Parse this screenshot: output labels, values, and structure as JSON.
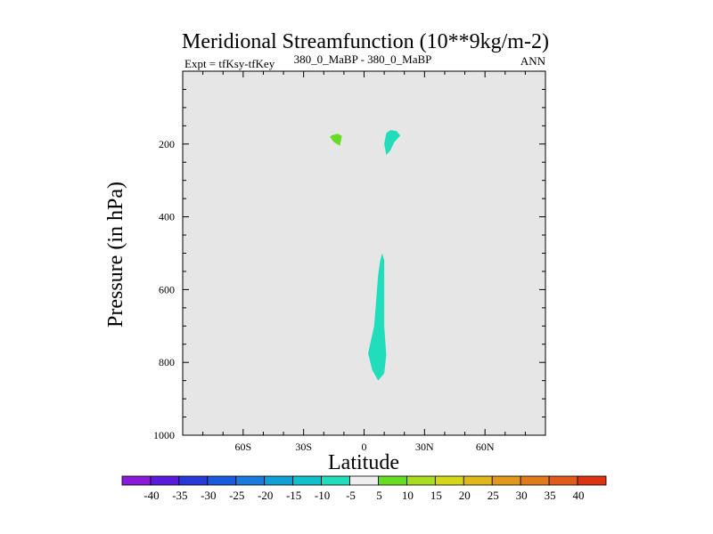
{
  "chart_data": {
    "type": "contour",
    "title": "Meridional Streamfunction (10**9kg/m-2)",
    "left_label": "Expt = tfKsy-tfKey",
    "center_label": "380_0_MaBP - 380_0_MaBP",
    "right_label": "ANN",
    "xlabel": "Latitude",
    "ylabel": "Pressure (in hPa)",
    "xlim": [
      -90,
      90
    ],
    "ylim": [
      1000,
      0
    ],
    "x_ticks": [
      -60,
      -30,
      0,
      30,
      60
    ],
    "x_tick_labels": [
      "60S",
      "30S",
      "0",
      "30N",
      "60N"
    ],
    "y_ticks": [
      200,
      400,
      600,
      800,
      1000
    ],
    "y_tick_labels": [
      "200",
      "400",
      "600",
      "800",
      "1000"
    ],
    "background_color": "#e6e6e6",
    "regions": [
      {
        "name": "upper-left-positive",
        "level": 5,
        "color": "#66dd22",
        "points": [
          [
            -16,
            176
          ],
          [
            -13,
            172
          ],
          [
            -11,
            178
          ],
          [
            -12,
            205
          ],
          [
            -15,
            195
          ],
          [
            -17,
            180
          ]
        ]
      },
      {
        "name": "upper-right-negative",
        "level": -5,
        "color": "#22ddbb",
        "points": [
          [
            11,
            170
          ],
          [
            13,
            162
          ],
          [
            16,
            164
          ],
          [
            18,
            177
          ],
          [
            15,
            195
          ],
          [
            13,
            218
          ],
          [
            11,
            230
          ],
          [
            10,
            200
          ]
        ]
      },
      {
        "name": "lower-negative",
        "level": -5,
        "color": "#22ddbb",
        "points": [
          [
            9,
            500
          ],
          [
            10,
            520
          ],
          [
            10,
            700
          ],
          [
            11,
            780
          ],
          [
            10,
            830
          ],
          [
            7,
            850
          ],
          [
            4,
            820
          ],
          [
            2,
            775
          ],
          [
            5,
            700
          ],
          [
            7,
            560
          ],
          [
            8,
            520
          ]
        ]
      }
    ],
    "colorbar": {
      "labels": [
        "-40",
        "-35",
        "-30",
        "-25",
        "-20",
        "-15",
        "-10",
        "-5",
        "5",
        "10",
        "15",
        "20",
        "25",
        "30",
        "35",
        "40"
      ],
      "colors": [
        "#8a1ad9",
        "#5a1adb",
        "#2a3ad9",
        "#1a5add",
        "#1a7add",
        "#10a0d6",
        "#10c0cc",
        "#22ddbb",
        "#eeeeee",
        "#66dd22",
        "#a8dd22",
        "#d4d61a",
        "#e0b81a",
        "#e0991a",
        "#e07a1a",
        "#e05a1a",
        "#dd3314"
      ]
    }
  }
}
